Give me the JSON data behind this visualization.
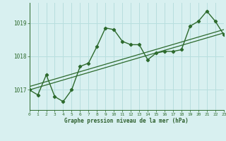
{
  "x": [
    0,
    1,
    2,
    3,
    4,
    5,
    6,
    7,
    8,
    9,
    10,
    11,
    12,
    13,
    14,
    15,
    16,
    17,
    18,
    19,
    20,
    21,
    22,
    23
  ],
  "y": [
    1017.0,
    1016.85,
    1017.45,
    1016.8,
    1016.65,
    1017.0,
    1017.7,
    1017.8,
    1018.3,
    1018.85,
    1018.8,
    1018.45,
    1018.35,
    1018.35,
    1017.9,
    1018.1,
    1018.15,
    1018.15,
    1018.2,
    1018.9,
    1019.05,
    1019.35,
    1019.05,
    1018.65
  ],
  "trend1_x": [
    0,
    23
  ],
  "trend1_y": [
    1017.0,
    1018.7
  ],
  "trend2_x": [
    0,
    23
  ],
  "trend2_y": [
    1017.1,
    1018.8
  ],
  "line_color": "#2d6a2d",
  "bg_color": "#d8f0f0",
  "grid_color": "#b8dede",
  "xlabel": "Graphe pression niveau de la mer (hPa)",
  "xlabel_color": "#2d5f2d",
  "yticks": [
    1017,
    1018,
    1019
  ],
  "xticks": [
    0,
    1,
    2,
    3,
    4,
    5,
    6,
    7,
    8,
    9,
    10,
    11,
    12,
    13,
    14,
    15,
    16,
    17,
    18,
    19,
    20,
    21,
    22,
    23
  ],
  "ylim": [
    1016.4,
    1019.6
  ],
  "xlim": [
    0,
    23
  ]
}
